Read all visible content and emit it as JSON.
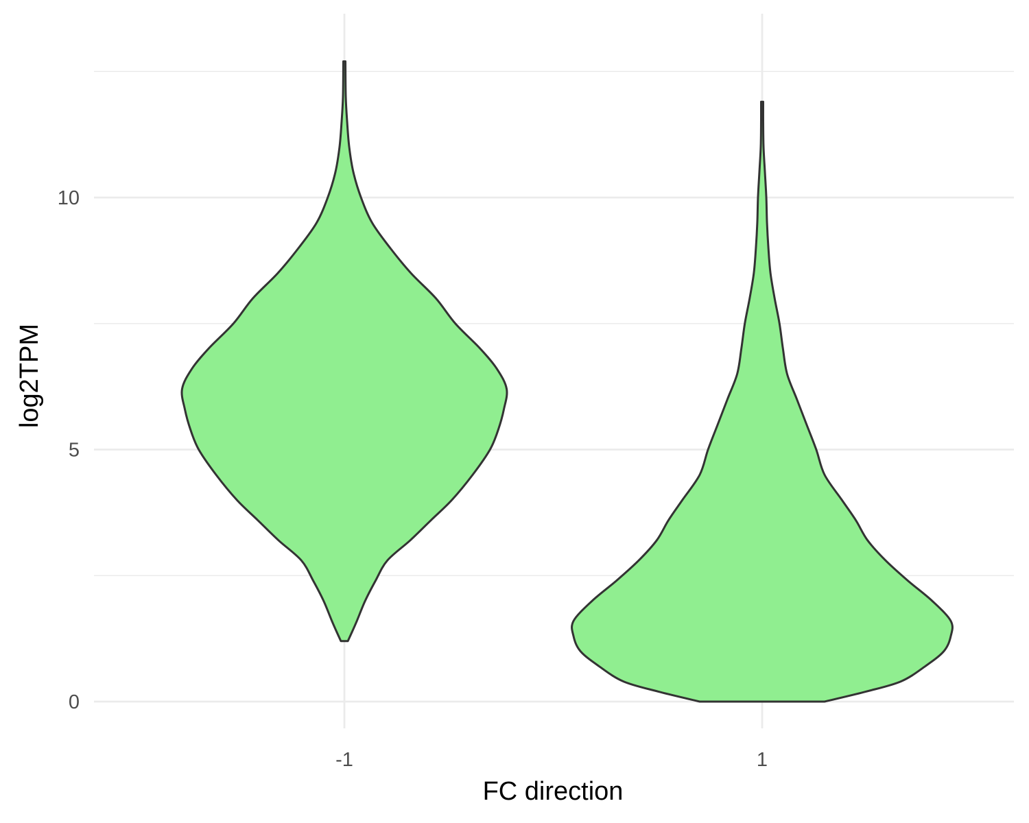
{
  "chart_data": {
    "type": "violin",
    "xlabel": "FC direction",
    "ylabel": "log2TPM",
    "categories": [
      "-1",
      "1"
    ],
    "ylim": [
      -0.6,
      13.6
    ],
    "yticks": [
      0,
      5,
      10
    ],
    "ytick_labels": [
      "0",
      "5",
      "10"
    ],
    "y_minor_ticks": [
      2.5,
      7.5,
      12.5
    ],
    "grid": true,
    "fill_color": "#90ee90",
    "outline_color": "#333333",
    "violins": [
      {
        "category": "-1",
        "y_min": 1.2,
        "y_max": 12.7,
        "density_profile": [
          [
            1.2,
            0.005
          ],
          [
            1.35,
            0.01
          ],
          [
            1.6,
            0.018
          ],
          [
            2.0,
            0.03
          ],
          [
            2.4,
            0.045
          ],
          [
            2.8,
            0.062
          ],
          [
            3.2,
            0.095
          ],
          [
            3.6,
            0.125
          ],
          [
            4.0,
            0.155
          ],
          [
            4.5,
            0.185
          ],
          [
            5.0,
            0.21
          ],
          [
            5.4,
            0.222
          ],
          [
            5.8,
            0.23
          ],
          [
            6.2,
            0.234
          ],
          [
            6.6,
            0.22
          ],
          [
            7.0,
            0.196
          ],
          [
            7.5,
            0.16
          ],
          [
            8.0,
            0.132
          ],
          [
            8.5,
            0.096
          ],
          [
            9.0,
            0.066
          ],
          [
            9.5,
            0.04
          ],
          [
            10.0,
            0.024
          ],
          [
            10.5,
            0.013
          ],
          [
            11.0,
            0.007
          ],
          [
            11.5,
            0.004
          ],
          [
            12.0,
            0.002
          ],
          [
            12.7,
            0.0015
          ]
        ]
      },
      {
        "category": "1",
        "y_min": 0,
        "y_max": 11.9,
        "density_profile": [
          [
            0.0,
            0.09
          ],
          [
            0.2,
            0.15
          ],
          [
            0.4,
            0.2
          ],
          [
            0.7,
            0.235
          ],
          [
            1.0,
            0.262
          ],
          [
            1.3,
            0.272
          ],
          [
            1.6,
            0.272
          ],
          [
            2.0,
            0.245
          ],
          [
            2.4,
            0.21
          ],
          [
            2.8,
            0.178
          ],
          [
            3.2,
            0.152
          ],
          [
            3.6,
            0.135
          ],
          [
            4.0,
            0.115
          ],
          [
            4.5,
            0.09
          ],
          [
            5.0,
            0.078
          ],
          [
            5.5,
            0.064
          ],
          [
            6.0,
            0.05
          ],
          [
            6.5,
            0.036
          ],
          [
            7.0,
            0.03
          ],
          [
            7.5,
            0.025
          ],
          [
            8.0,
            0.018
          ],
          [
            8.5,
            0.012
          ],
          [
            9.0,
            0.009
          ],
          [
            9.5,
            0.007
          ],
          [
            10.0,
            0.006
          ],
          [
            10.5,
            0.004
          ],
          [
            11.0,
            0.002
          ],
          [
            11.5,
            0.0015
          ],
          [
            11.9,
            0.0015
          ]
        ]
      }
    ]
  }
}
